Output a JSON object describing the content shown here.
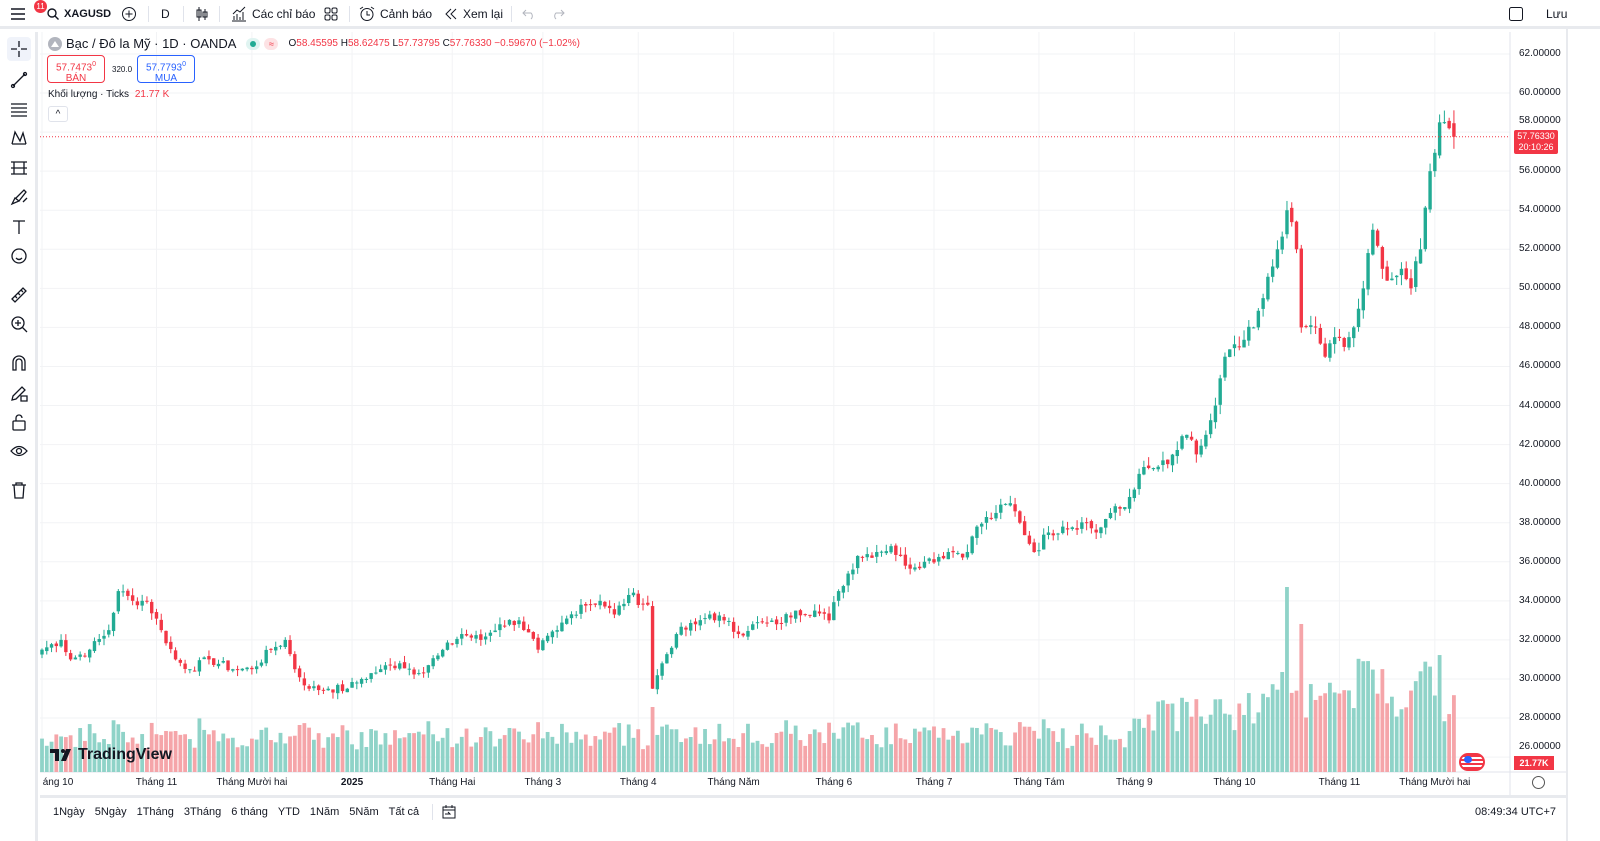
{
  "topbar": {
    "notifications": "11",
    "symbol": "XAGUSD",
    "interval": "D",
    "indicators": "Các chỉ báo",
    "alerts": "Cảnh báo",
    "replay": "Xem lại",
    "save": "Lưu"
  },
  "legend": {
    "title": "Bạc / Đô la Mỹ · 1D · OANDA",
    "o_label": "O",
    "o": "58.45595",
    "h_label": "H",
    "h": "58.62475",
    "l_label": "L",
    "l": "57.73795",
    "c_label": "C",
    "c": "57.76330",
    "change": "−0.59670 (−1.02%)"
  },
  "trade": {
    "sell_price": "57.7473",
    "sell_sup": "0",
    "sell_label": "BÁN",
    "spread": "320.0",
    "buy_price": "57.7793",
    "buy_sup": "0",
    "buy_label": "MUA"
  },
  "volume": {
    "label": "Khối lượng · Ticks",
    "value": "21.77 K",
    "axis_label": "21.77K"
  },
  "last_price": {
    "value": "57.76330",
    "countdown": "20:10:26"
  },
  "colors": {
    "up": "#22ab94",
    "down": "#f23645",
    "vol_up": "#8fd3c8",
    "vol_down": "#f5a5a9"
  },
  "bottom": {
    "ranges": [
      "1Ngày",
      "5Ngày",
      "1Tháng",
      "3Tháng",
      "6 tháng",
      "YTD",
      "1Năm",
      "5Năm",
      "Tất cả"
    ],
    "clock": "08:49:34 UTC+7"
  },
  "chart_data": {
    "type": "candlestick",
    "y_ticks": [
      "62.00000",
      "60.00000",
      "58.00000",
      "56.00000",
      "54.00000",
      "52.00000",
      "50.00000",
      "48.00000",
      "46.00000",
      "44.00000",
      "42.00000",
      "40.00000",
      "38.00000",
      "36.00000",
      "34.00000",
      "32.00000",
      "30.00000",
      "28.00000",
      "26.00000"
    ],
    "ylim": [
      26,
      62
    ],
    "x_ticks": [
      {
        "label": "áng 10",
        "day": 0
      },
      {
        "label": "Tháng 11",
        "day": 24
      },
      {
        "label": "Tháng Mười hai",
        "day": 44
      },
      {
        "label": "2025",
        "day": 65
      },
      {
        "label": "Tháng Hai",
        "day": 86
      },
      {
        "label": "Tháng 3",
        "day": 105
      },
      {
        "label": "Tháng 4",
        "day": 125
      },
      {
        "label": "Tháng Năm",
        "day": 145
      },
      {
        "label": "Tháng 6",
        "day": 166
      },
      {
        "label": "Tháng 7",
        "day": 187
      },
      {
        "label": "Tháng Tám",
        "day": 209
      },
      {
        "label": "Tháng 9",
        "day": 229
      },
      {
        "label": "Tháng 10",
        "day": 250
      },
      {
        "label": "Tháng 11",
        "day": 272
      },
      {
        "label": "Tháng Mười hai",
        "day": 292
      }
    ],
    "close_keypoints": [
      [
        0,
        31.5
      ],
      [
        4,
        32
      ],
      [
        6,
        31
      ],
      [
        10,
        31.5
      ],
      [
        14,
        32.5
      ],
      [
        16,
        34.5
      ],
      [
        19,
        34
      ],
      [
        22,
        34
      ],
      [
        25,
        32.5
      ],
      [
        28,
        31
      ],
      [
        31,
        30.5
      ],
      [
        35,
        31
      ],
      [
        40,
        30.5
      ],
      [
        44,
        30.5
      ],
      [
        48,
        31.5
      ],
      [
        51,
        32
      ],
      [
        53,
        30.5
      ],
      [
        56,
        29.5
      ],
      [
        60,
        29.5
      ],
      [
        64,
        29.5
      ],
      [
        67,
        30
      ],
      [
        71,
        30.5
      ],
      [
        75,
        30.8
      ],
      [
        79,
        30.3
      ],
      [
        83,
        31.2
      ],
      [
        88,
        32.3
      ],
      [
        92,
        32
      ],
      [
        96,
        32.8
      ],
      [
        100,
        33
      ],
      [
        104,
        31.5
      ],
      [
        108,
        32.5
      ],
      [
        113,
        33.8
      ],
      [
        117,
        34
      ],
      [
        120,
        33.3
      ],
      [
        123,
        34.3
      ],
      [
        127,
        33.8
      ],
      [
        128,
        29.5
      ],
      [
        130,
        30.8
      ],
      [
        133,
        32.3
      ],
      [
        137,
        32.8
      ],
      [
        140,
        33.3
      ],
      [
        143,
        33
      ],
      [
        146,
        32.3
      ],
      [
        149,
        32.8
      ],
      [
        154,
        32.8
      ],
      [
        158,
        33.5
      ],
      [
        162,
        33.5
      ],
      [
        165,
        33
      ],
      [
        167,
        34.5
      ],
      [
        171,
        36.3
      ],
      [
        175,
        36.5
      ],
      [
        178,
        36.8
      ],
      [
        181,
        35.8
      ],
      [
        185,
        36
      ],
      [
        190,
        36.5
      ],
      [
        194,
        36.5
      ],
      [
        196,
        37.8
      ],
      [
        200,
        38.5
      ],
      [
        203,
        39
      ],
      [
        205,
        38
      ],
      [
        208,
        36.5
      ],
      [
        211,
        37.5
      ],
      [
        214,
        37.8
      ],
      [
        219,
        38
      ],
      [
        221,
        37.5
      ],
      [
        224,
        38.5
      ],
      [
        227,
        38.8
      ],
      [
        230,
        40.5
      ],
      [
        233,
        40.8
      ],
      [
        236,
        41
      ],
      [
        240,
        42.5
      ],
      [
        242,
        41.5
      ],
      [
        244,
        42.5
      ],
      [
        246,
        44
      ],
      [
        248,
        46.5
      ],
      [
        251,
        47
      ],
      [
        254,
        48
      ],
      [
        256,
        49.5
      ],
      [
        259,
        52
      ],
      [
        261,
        54
      ],
      [
        263,
        52
      ],
      [
        264,
        48
      ],
      [
        267,
        48
      ],
      [
        269,
        46.5
      ],
      [
        271,
        47.5
      ],
      [
        273,
        47
      ],
      [
        275,
        48
      ],
      [
        277,
        50
      ],
      [
        279,
        53
      ],
      [
        281,
        51
      ],
      [
        283,
        50.5
      ],
      [
        285,
        51
      ],
      [
        287,
        50
      ],
      [
        289,
        52
      ],
      [
        291,
        56
      ],
      [
        293,
        58.5
      ],
      [
        295,
        58.2
      ],
      [
        296,
        57.76
      ]
    ]
  }
}
